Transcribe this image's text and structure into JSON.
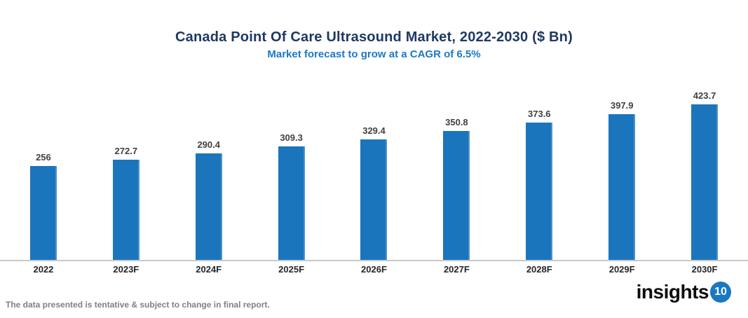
{
  "header": {
    "title": "Canada Point Of Care Ultrasound Market, 2022-2030 ($ Bn)",
    "subtitle": "Market forecast to grow at a CAGR of 6.5%"
  },
  "chart_data": {
    "type": "bar",
    "categories": [
      "2022",
      "2023F",
      "2024F",
      "2025F",
      "2026F",
      "2027F",
      "2028F",
      "2029F",
      "2030F"
    ],
    "values": [
      256,
      272.7,
      290.4,
      309.3,
      329.4,
      350.8,
      373.6,
      397.9,
      423.7
    ],
    "title": "Canada Point Of Care Ultrasound Market, 2022-2030 ($ Bn)",
    "subtitle": "Market forecast to grow at a CAGR of 6.5%",
    "xlabel": "",
    "ylabel": "",
    "ylim": [
      0,
      440
    ],
    "grid": false,
    "legend": "none",
    "data_labels": true,
    "bar_color": "#1B75BC"
  },
  "colors": {
    "title": "#1F3864",
    "subtitle": "#1D78C4",
    "bar": "#1B75BC",
    "value_label": "#404040",
    "axis_label": "#262626",
    "axis_line": "#C9C9C9",
    "footnote": "#808080",
    "logo_badge_bg": "#1878C2"
  },
  "footer": {
    "note": "The data presented is tentative & subject to change in final report.",
    "logo_text": "insights",
    "logo_badge": "10"
  }
}
